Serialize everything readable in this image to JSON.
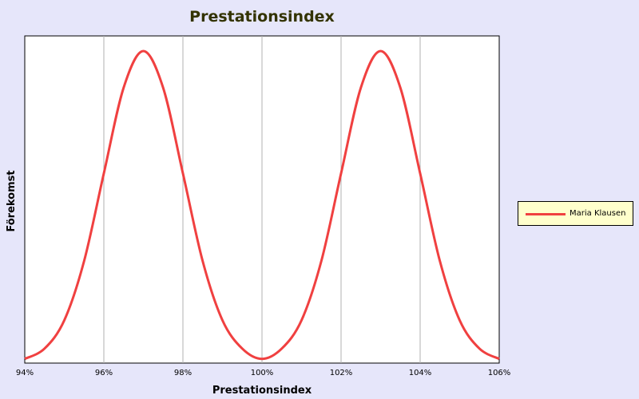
{
  "chart_data": {
    "type": "line",
    "title": "Prestationsindex",
    "xlabel": "Prestationsindex",
    "ylabel": "Förekomst",
    "x_tick_labels": [
      "94%",
      "96%",
      "98%",
      "100%",
      "102%",
      "104%",
      "106%"
    ],
    "x_ticks": [
      94,
      96,
      98,
      100,
      102,
      104,
      106
    ],
    "xlim": [
      94,
      106
    ],
    "y_ticks_shown": false,
    "grid": "vertical",
    "legend_position": "right",
    "series": [
      {
        "name": "Maria Klausen",
        "color": "#f04040",
        "x": [
          94,
          94.5,
          95,
          95.5,
          96,
          96.5,
          97,
          97.5,
          98,
          98.5,
          99,
          99.5,
          100,
          100.5,
          101,
          101.5,
          102,
          102.5,
          103,
          103.5,
          104,
          104.5,
          105,
          105.5,
          106
        ],
        "y": [
          0.011,
          0.044,
          0.135,
          0.325,
          0.607,
          0.882,
          1.0,
          0.882,
          0.607,
          0.325,
          0.135,
          0.044,
          0.011,
          0.044,
          0.135,
          0.325,
          0.607,
          0.882,
          1.0,
          0.882,
          0.607,
          0.325,
          0.135,
          0.044,
          0.011
        ]
      }
    ]
  },
  "colors": {
    "background": "#e6e6fa",
    "plot_background": "#ffffff",
    "title": "#333300",
    "grid": "#b0b0b0",
    "legend_background": "#ffffcc"
  }
}
